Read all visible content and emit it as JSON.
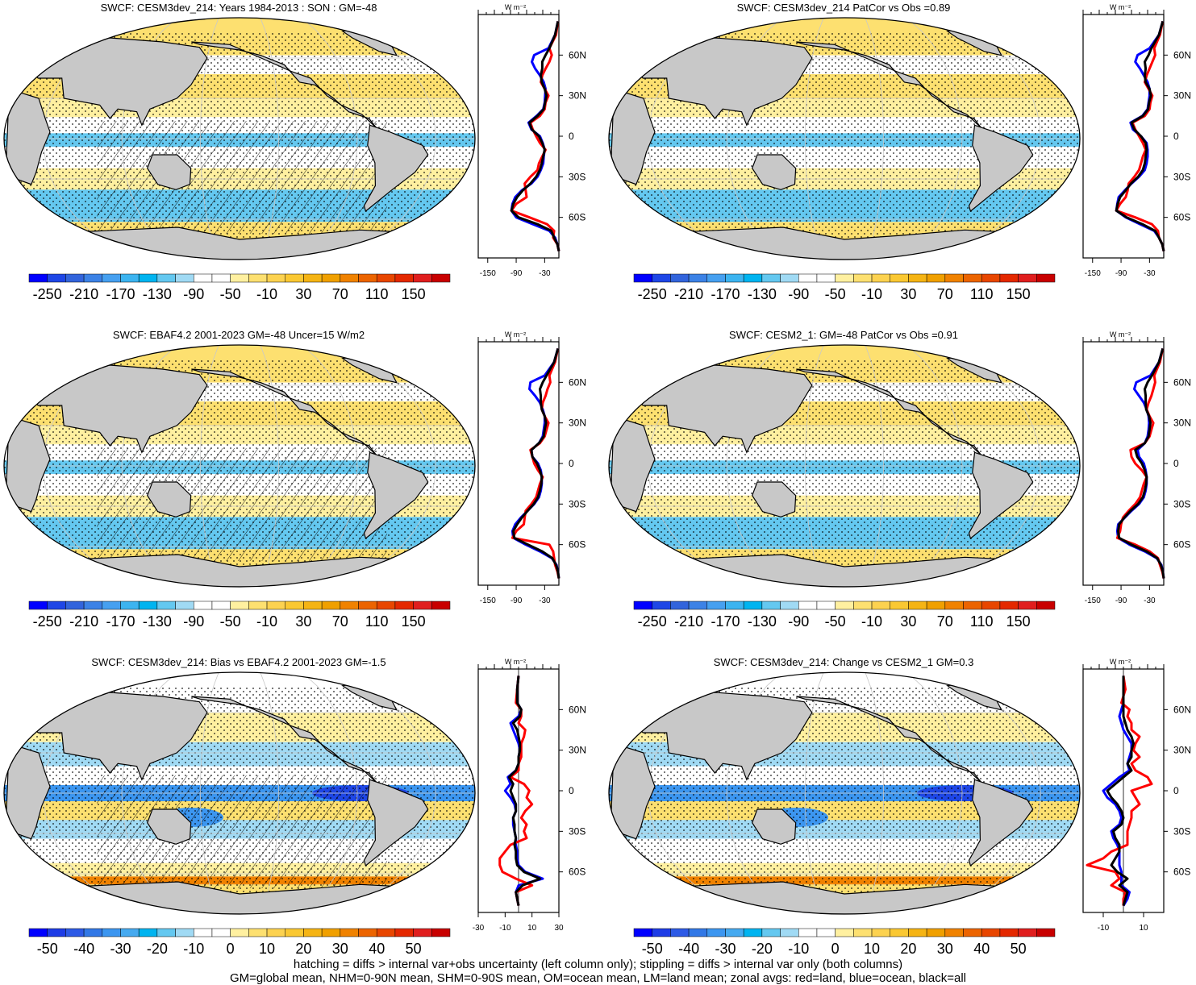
{
  "figure": {
    "footer_lines": [
      "hatching = diffs > internal var+obs uncertainty (left column only); stippling = diffs > internal var only (both columns)",
      "GM=global mean, NHM=0-90N mean, SHM=0-90S mean, OM=ocean mean, LM=land mean; zonal avgs: red=land, blue=ocean, black=all"
    ],
    "zonal_units": "W m⁻²",
    "lat_tick_labels": [
      "60N",
      "30N",
      "0",
      "30S",
      "60S"
    ]
  },
  "colors": {
    "land": "#c8c8c8",
    "ocean_line": "#0000ff",
    "land_line": "#ff0000",
    "all_line": "#000000",
    "abs_colorbar": [
      "#0000ff",
      "#1e46e6",
      "#3264dc",
      "#3c82e6",
      "#46a0f0",
      "#3cb4f0",
      "#00b4f0",
      "#64c8f0",
      "#a0daf4",
      "#ffffff",
      "#ffffff",
      "#fff0a0",
      "#fde070",
      "#fcd250",
      "#fac832",
      "#f5b414",
      "#f0a000",
      "#f08200",
      "#ec6400",
      "#e84600",
      "#e42800",
      "#e01e1e",
      "#c80000"
    ],
    "diff_colorbar": [
      "#0000ff",
      "#1e3ce6",
      "#2d5ae6",
      "#3278e6",
      "#3c96f0",
      "#46aaf0",
      "#00b4f0",
      "#64c8f0",
      "#a0daf4",
      "#ffffff",
      "#ffffff",
      "#fff0a0",
      "#fde070",
      "#fcd250",
      "#fac832",
      "#f5b414",
      "#f0a000",
      "#f08200",
      "#ec6400",
      "#e84600",
      "#e42800",
      "#e01e1e",
      "#c80000"
    ]
  },
  "panels": [
    {
      "title": "SWCF: CESM3dev_214: Years 1984-2013 : SON : GM=-48",
      "colorbar_labels": [
        "-250",
        "-210",
        "-170",
        "-130",
        "-90",
        "-50",
        "-10",
        "30",
        "70",
        "110",
        "150"
      ],
      "zonal_x_labels": [
        "-150",
        "-90",
        "-30"
      ],
      "hatching": true
    },
    {
      "title": "SWCF: CESM3dev_214 PatCor vs Obs =0.89",
      "colorbar_labels": [
        "-250",
        "-210",
        "-170",
        "-130",
        "-90",
        "-50",
        "-10",
        "30",
        "70",
        "110",
        "150"
      ],
      "zonal_x_labels": [
        "-150",
        "-90",
        "-30"
      ],
      "hatching": false
    },
    {
      "title": "SWCF: EBAF4.2 2001-2023 GM=-48 Uncer=15 W/m2",
      "colorbar_labels": [
        "-250",
        "-210",
        "-170",
        "-130",
        "-90",
        "-50",
        "-10",
        "30",
        "70",
        "110",
        "150"
      ],
      "zonal_x_labels": [
        "-150",
        "-90",
        "-30"
      ],
      "hatching": true
    },
    {
      "title": "SWCF: CESM2_1: GM=-48 PatCor vs Obs =0.91",
      "colorbar_labels": [
        "-250",
        "-210",
        "-170",
        "-130",
        "-90",
        "-50",
        "-10",
        "30",
        "70",
        "110",
        "150"
      ],
      "zonal_x_labels": [
        "-150",
        "-90",
        "-30"
      ],
      "hatching": false
    },
    {
      "title": "SWCF: CESM3dev_214: Bias vs EBAF4.2 2001-2023  GM=-1.5",
      "colorbar_labels": [
        "-50",
        "-40",
        "-30",
        "-20",
        "-10",
        "0",
        "10",
        "20",
        "30",
        "40",
        "50"
      ],
      "zonal_x_labels": [
        "-30",
        "-10",
        "10",
        "30"
      ],
      "hatching": true
    },
    {
      "title": "SWCF: CESM3dev_214: Change vs CESM2_1 GM=0.3",
      "colorbar_labels": [
        "-50",
        "-40",
        "-30",
        "-20",
        "-10",
        "0",
        "10",
        "20",
        "30",
        "40",
        "50"
      ],
      "zonal_x_labels": [
        "-10",
        "10"
      ],
      "hatching": false
    }
  ],
  "chart_data": [
    {
      "type": "line",
      "title": "SWCF: CESM3dev_214: Years 1984-2013 : SON : GM=-48",
      "ylabel": "W m⁻²",
      "xlim": [
        -170,
        0
      ],
      "y": [
        85,
        75,
        65,
        60,
        55,
        50,
        45,
        40,
        35,
        30,
        25,
        20,
        15,
        10,
        5,
        0,
        -5,
        -10,
        -15,
        -20,
        -25,
        -30,
        -35,
        -40,
        -45,
        -50,
        -55,
        -60,
        -65,
        -70,
        -75,
        -80,
        -85
      ],
      "series": [
        {
          "name": "ocean",
          "color": "#0000ff",
          "values": [
            -2,
            -8,
            -22,
            -52,
            -57,
            -50,
            -40,
            -32,
            -28,
            -29,
            -30,
            -33,
            -47,
            -64,
            -58,
            -40,
            -34,
            -30,
            -32,
            -33,
            -38,
            -45,
            -58,
            -78,
            -92,
            -98,
            -100,
            -90,
            -55,
            -20,
            -8,
            -3,
            0
          ]
        },
        {
          "name": "land",
          "color": "#ff0000",
          "values": [
            -2,
            -6,
            -20,
            -15,
            -20,
            -28,
            -35,
            -38,
            -30,
            -22,
            -28,
            -30,
            -40,
            -60,
            -55,
            -48,
            -40,
            -28,
            -35,
            -42,
            -45,
            -60,
            -72,
            -70,
            -68,
            -90,
            -100,
            -62,
            -25,
            -10,
            -12,
            -3,
            0
          ]
        },
        {
          "name": "all",
          "color": "#000000",
          "values": [
            -2,
            -8,
            -20,
            -28,
            -35,
            -35,
            -38,
            -36,
            -30,
            -26,
            -29,
            -32,
            -45,
            -62,
            -57,
            -42,
            -35,
            -30,
            -33,
            -36,
            -40,
            -48,
            -60,
            -76,
            -88,
            -96,
            -100,
            -85,
            -45,
            -16,
            -10,
            -3,
            0
          ]
        }
      ]
    },
    {
      "type": "line",
      "title": "SWCF: CESM3dev_214 PatCor vs Obs =0.89",
      "ylabel": "W m⁻²",
      "xlim": [
        -170,
        0
      ],
      "y": [
        85,
        75,
        65,
        60,
        55,
        50,
        45,
        40,
        35,
        30,
        25,
        20,
        15,
        10,
        5,
        0,
        -5,
        -10,
        -15,
        -20,
        -25,
        -30,
        -35,
        -40,
        -45,
        -50,
        -55,
        -60,
        -65,
        -70,
        -75,
        -80,
        -85
      ],
      "series": [
        {
          "name": "ocean",
          "color": "#0000ff",
          "values": [
            -2,
            -10,
            -30,
            -55,
            -60,
            -50,
            -42,
            -34,
            -30,
            -30,
            -32,
            -34,
            -45,
            -70,
            -65,
            -48,
            -36,
            -34,
            -34,
            -36,
            -40,
            -52,
            -68,
            -82,
            -95,
            -98,
            -100,
            -80,
            -50,
            -20,
            -10,
            -3,
            0
          ]
        },
        {
          "name": "land",
          "color": "#ff0000",
          "values": [
            -2,
            -8,
            -20,
            -18,
            -24,
            -30,
            -36,
            -40,
            -32,
            -24,
            -28,
            -30,
            -40,
            -66,
            -60,
            -52,
            -44,
            -38,
            -44,
            -48,
            -52,
            -62,
            -74,
            -76,
            -80,
            -92,
            -100,
            -60,
            -25,
            -12,
            -10,
            -3,
            0
          ]
        },
        {
          "name": "all",
          "color": "#000000",
          "values": [
            -2,
            -10,
            -26,
            -32,
            -40,
            -38,
            -40,
            -38,
            -30,
            -27,
            -31,
            -33,
            -44,
            -68,
            -62,
            -48,
            -38,
            -36,
            -38,
            -40,
            -44,
            -54,
            -69,
            -80,
            -92,
            -97,
            -100,
            -78,
            -45,
            -18,
            -10,
            -3,
            0
          ]
        }
      ]
    },
    {
      "type": "line",
      "title": "SWCF: EBAF4.2 2001-2023 GM=-48 Uncer=15 W/m2",
      "ylabel": "W m⁻²",
      "xlim": [
        -170,
        0
      ],
      "y": [
        85,
        75,
        65,
        60,
        55,
        50,
        45,
        40,
        35,
        30,
        25,
        20,
        15,
        10,
        5,
        0,
        -5,
        -10,
        -15,
        -20,
        -25,
        -30,
        -35,
        -40,
        -45,
        -50,
        -55,
        -60,
        -65,
        -70,
        -75,
        -80,
        -85
      ],
      "series": [
        {
          "name": "ocean",
          "color": "#0000ff",
          "values": [
            -2,
            -10,
            -30,
            -60,
            -62,
            -50,
            -40,
            -34,
            -30,
            -30,
            -32,
            -34,
            -42,
            -58,
            -56,
            -44,
            -38,
            -36,
            -36,
            -38,
            -42,
            -52,
            -66,
            -80,
            -92,
            -98,
            -96,
            -70,
            -40,
            -15,
            -5,
            -2,
            0
          ]
        },
        {
          "name": "land",
          "color": "#ff0000",
          "values": [
            -2,
            -8,
            -20,
            -18,
            -24,
            -28,
            -34,
            -36,
            -30,
            -22,
            -26,
            -30,
            -40,
            -60,
            -56,
            -52,
            -44,
            -34,
            -40,
            -44,
            -48,
            -58,
            -70,
            -72,
            -74,
            -90,
            -98,
            -20,
            -12,
            -10,
            -8,
            -3,
            0
          ]
        },
        {
          "name": "all",
          "color": "#000000",
          "values": [
            -2,
            -10,
            -26,
            -34,
            -40,
            -38,
            -38,
            -36,
            -30,
            -27,
            -30,
            -32,
            -42,
            -58,
            -56,
            -46,
            -40,
            -36,
            -37,
            -40,
            -44,
            -53,
            -66,
            -78,
            -88,
            -96,
            -94,
            -65,
            -35,
            -14,
            -6,
            -2,
            0
          ]
        }
      ]
    },
    {
      "type": "line",
      "title": "SWCF: CESM2_1: GM=-48 PatCor vs Obs =0.91",
      "ylabel": "W m⁻²",
      "xlim": [
        -170,
        0
      ],
      "y": [
        85,
        75,
        65,
        60,
        55,
        50,
        45,
        40,
        35,
        30,
        25,
        20,
        15,
        10,
        5,
        0,
        -5,
        -10,
        -15,
        -20,
        -25,
        -30,
        -35,
        -40,
        -45,
        -50,
        -55,
        -60,
        -65,
        -70,
        -75,
        -80,
        -85
      ],
      "series": [
        {
          "name": "ocean",
          "color": "#0000ff",
          "values": [
            -2,
            -10,
            -28,
            -58,
            -62,
            -52,
            -42,
            -36,
            -32,
            -31,
            -32,
            -34,
            -40,
            -55,
            -52,
            -42,
            -38,
            -36,
            -36,
            -38,
            -42,
            -52,
            -68,
            -82,
            -96,
            -98,
            -96,
            -72,
            -40,
            -15,
            -5,
            -2,
            0
          ]
        },
        {
          "name": "land",
          "color": "#ff0000",
          "values": [
            -2,
            -8,
            -20,
            -18,
            -22,
            -26,
            -32,
            -36,
            -30,
            -22,
            -26,
            -30,
            -40,
            -70,
            -68,
            -60,
            -46,
            -36,
            -42,
            -46,
            -50,
            -60,
            -74,
            -86,
            -90,
            -92,
            -98,
            -60,
            -30,
            -12,
            -8,
            -3,
            0
          ]
        },
        {
          "name": "all",
          "color": "#000000",
          "values": [
            -2,
            -10,
            -25,
            -34,
            -40,
            -38,
            -38,
            -37,
            -31,
            -28,
            -30,
            -32,
            -40,
            -60,
            -56,
            -46,
            -40,
            -36,
            -37,
            -40,
            -44,
            -54,
            -70,
            -83,
            -94,
            -96,
            -94,
            -68,
            -36,
            -14,
            -6,
            -2,
            0
          ]
        }
      ]
    },
    {
      "type": "line",
      "title": "SWCF: CESM3dev_214: Bias vs EBAF4.2 2001-2023  GM=-1.5",
      "ylabel": "W m⁻²",
      "xlim": [
        -30,
        30
      ],
      "y": [
        85,
        75,
        65,
        60,
        55,
        50,
        45,
        40,
        35,
        30,
        25,
        20,
        15,
        10,
        5,
        0,
        -5,
        -10,
        -15,
        -20,
        -25,
        -30,
        -35,
        -40,
        -45,
        -50,
        -55,
        -60,
        -65,
        -70,
        -75,
        -80,
        -85
      ],
      "series": [
        {
          "name": "ocean",
          "color": "#0000ff",
          "values": [
            0,
            -1,
            -1,
            2,
            0,
            -6,
            -4,
            -2,
            0,
            1,
            0,
            0,
            -2,
            -8,
            -6,
            -10,
            -6,
            -3,
            -2,
            -4,
            -4,
            -3,
            -2,
            -2,
            -1,
            -1,
            0,
            5,
            18,
            0,
            -2,
            -1,
            0
          ]
        },
        {
          "name": "land",
          "color": "#ff0000",
          "values": [
            0,
            -1,
            -2,
            2,
            2,
            0,
            5,
            4,
            2,
            2,
            2,
            0,
            0,
            -6,
            4,
            8,
            6,
            10,
            5,
            2,
            6,
            4,
            6,
            -6,
            -10,
            -14,
            -14,
            -12,
            -2,
            10,
            -2,
            -1,
            0
          ]
        },
        {
          "name": "all",
          "color": "#000000",
          "values": [
            0,
            -1,
            -1,
            2,
            1,
            -4,
            -1,
            0,
            1,
            1,
            0,
            0,
            -2,
            -7,
            -4,
            -6,
            -4,
            -2,
            -2,
            -4,
            -3,
            -3,
            -2,
            -3,
            -2,
            -2,
            -1,
            4,
            16,
            3,
            -2,
            -1,
            0
          ]
        }
      ]
    },
    {
      "type": "line",
      "title": "SWCF: CESM3dev_214: Change vs CESM2_1 GM=0.3",
      "ylabel": "W m⁻²",
      "xlim": [
        -20,
        20
      ],
      "y": [
        85,
        75,
        65,
        60,
        55,
        50,
        45,
        40,
        35,
        30,
        25,
        20,
        15,
        10,
        5,
        0,
        -5,
        -10,
        -15,
        -20,
        -25,
        -30,
        -35,
        -40,
        -45,
        -50,
        -55,
        -60,
        -65,
        -70,
        -75,
        -80,
        -85
      ],
      "series": [
        {
          "name": "ocean",
          "color": "#0000ff",
          "values": [
            0,
            0,
            0,
            -1,
            -2,
            -1,
            0,
            2,
            4,
            4,
            3,
            2,
            3,
            -2,
            -6,
            -10,
            -8,
            -4,
            -2,
            -1,
            -2,
            -6,
            -5,
            -3,
            -2,
            -2,
            -2,
            -1,
            -1,
            -1,
            3,
            2,
            0
          ]
        },
        {
          "name": "land",
          "color": "#ff0000",
          "values": [
            0,
            1,
            -1,
            3,
            2,
            4,
            4,
            8,
            6,
            5,
            8,
            4,
            6,
            12,
            14,
            4,
            6,
            8,
            4,
            4,
            3,
            2,
            2,
            2,
            -6,
            -10,
            -18,
            -4,
            -2,
            -6,
            1,
            0,
            0
          ]
        },
        {
          "name": "all",
          "color": "#000000",
          "values": [
            0,
            0,
            0,
            0,
            0,
            1,
            2,
            4,
            5,
            4,
            4,
            2,
            4,
            0,
            -4,
            -8,
            -6,
            -3,
            -1,
            0,
            -1,
            -5,
            -4,
            -2,
            -2,
            -4,
            -6,
            -3,
            2,
            -2,
            2,
            1,
            0
          ]
        }
      ]
    }
  ]
}
